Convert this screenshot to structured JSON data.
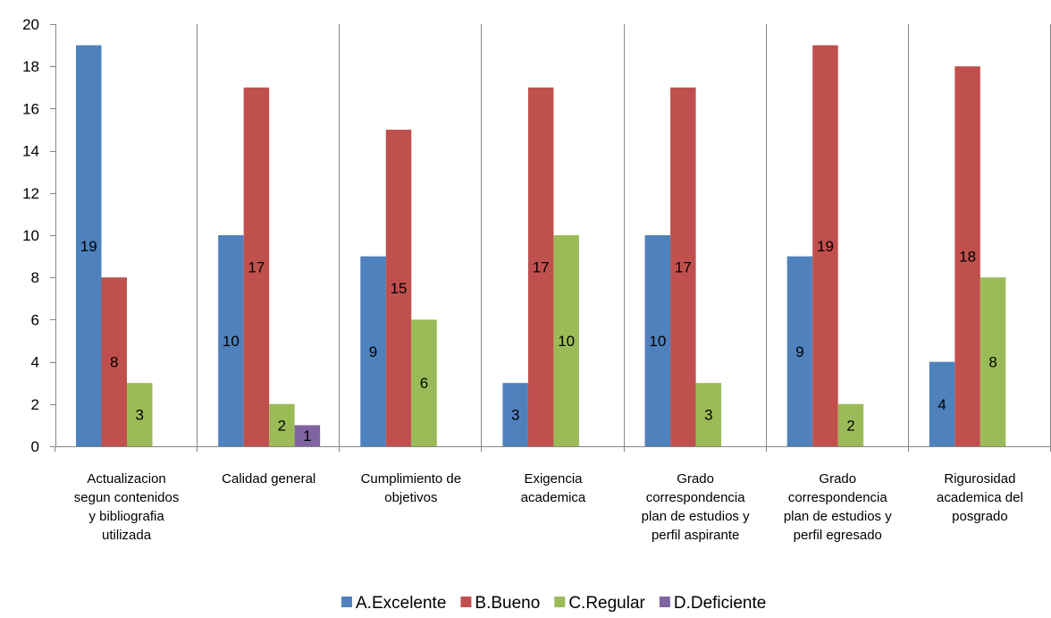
{
  "chart_data": {
    "type": "bar",
    "title": "",
    "xlabel": "",
    "ylabel": "",
    "ylim": [
      0,
      20
    ],
    "ytick_step": 2,
    "grid": "vertical-category-separators",
    "legend_position": "bottom",
    "categories": [
      [
        "Actualizacion",
        "segun contenidos",
        "y bibliografia",
        "utilizada"
      ],
      [
        "Calidad general"
      ],
      [
        "Cumplimiento de",
        "objetivos"
      ],
      [
        "Exigencia",
        "academica"
      ],
      [
        "Grado",
        "correspondencia",
        "plan de estudios y",
        "perfil aspirante"
      ],
      [
        "Grado",
        "correspondencia",
        "plan de estudios y",
        "perfil egresado"
      ],
      [
        "Rigurosidad",
        "academica del",
        "posgrado"
      ]
    ],
    "series": [
      {
        "name": "A.Excelente",
        "color": "#4f81bd",
        "values": [
          19,
          10,
          9,
          3,
          10,
          9,
          4
        ]
      },
      {
        "name": "B.Bueno",
        "color": "#c0504d",
        "values": [
          8,
          17,
          15,
          17,
          17,
          19,
          18
        ]
      },
      {
        "name": "C.Regular",
        "color": "#9bbb59",
        "values": [
          3,
          2,
          6,
          10,
          3,
          2,
          8
        ]
      },
      {
        "name": "D.Deficiente",
        "color": "#8064a2",
        "values": [
          null,
          1,
          null,
          null,
          null,
          null,
          null
        ]
      }
    ]
  }
}
